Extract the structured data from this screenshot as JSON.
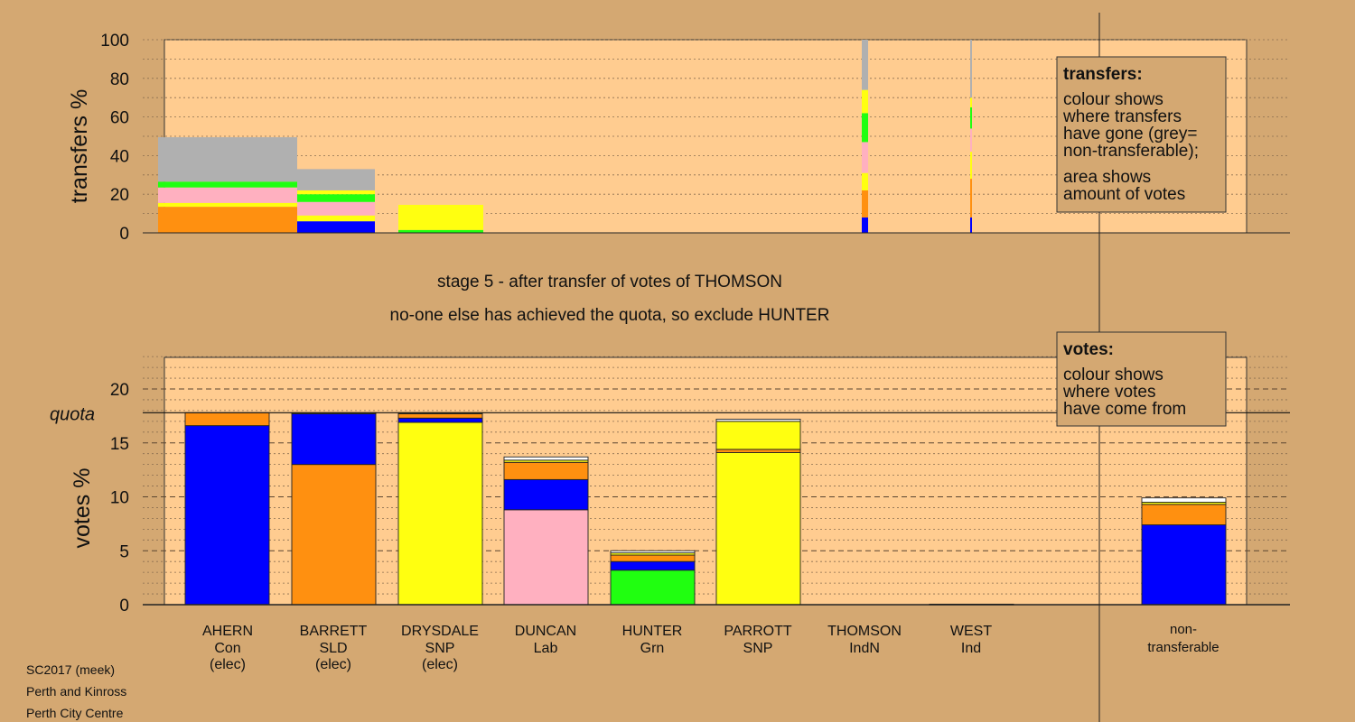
{
  "colors": {
    "page_bg": "#d4a872",
    "panel_bg": "#ffcc90",
    "blue": "#0000ff",
    "orange": "#ff9010",
    "yellow": "#ffff10",
    "pink": "#ffb0c0",
    "green": "#20ff10",
    "grey": "#b0b0b0",
    "white": "#ffffff"
  },
  "stage": {
    "line1": "stage 5 - after transfer of votes of THOMSON",
    "line2": "no-one else has achieved the quota, so exclude HUNTER"
  },
  "footer": {
    "line1": "SC2017 (meek)",
    "line2": "Perth and Kinross",
    "line3": "Perth City Centre"
  },
  "transfers_legend": {
    "title": "transfers:",
    "lines": [
      "colour shows",
      "where transfers",
      "have gone (grey=",
      "non-transferable);"
    ],
    "lines2": [
      "area shows",
      "amount of votes"
    ]
  },
  "votes_legend": {
    "title": "votes:",
    "lines": [
      "colour shows",
      "where votes",
      "have come from"
    ]
  },
  "candidates": [
    {
      "name": "AHERN",
      "party": "Con",
      "status": "(elec)"
    },
    {
      "name": "BARRETT",
      "party": "SLD",
      "status": "(elec)"
    },
    {
      "name": "DRYSDALE",
      "party": "SNP",
      "status": "(elec)"
    },
    {
      "name": "DUNCAN",
      "party": "Lab",
      "status": ""
    },
    {
      "name": "HUNTER",
      "party": "Grn",
      "status": ""
    },
    {
      "name": "PARROTT",
      "party": "SNP",
      "status": ""
    },
    {
      "name": "THOMSON",
      "party": "IndN",
      "status": ""
    },
    {
      "name": "WEST",
      "party": "Ind",
      "status": ""
    }
  ],
  "nontransferable": {
    "line1": "non-",
    "line2": "transferable"
  },
  "chart_data": [
    {
      "type": "bar",
      "id": "transfers",
      "ylabel": "transfers %",
      "ylim": [
        0,
        100
      ],
      "yticks": [
        0,
        20,
        40,
        60,
        80,
        100
      ],
      "grid": true,
      "legend": "top-right",
      "stacked": true,
      "bars": [
        {
          "category": "AHERN",
          "segments": [
            {
              "color": "orange",
              "value": 13.5
            },
            {
              "color": "yellow",
              "value": 2
            },
            {
              "color": "pink",
              "value": 8
            },
            {
              "color": "green",
              "value": 3
            },
            {
              "color": "grey",
              "value": 23
            }
          ]
        },
        {
          "category": "BARRETT",
          "segments": [
            {
              "color": "blue",
              "value": 6
            },
            {
              "color": "yellow",
              "value": 3
            },
            {
              "color": "pink",
              "value": 7
            },
            {
              "color": "green",
              "value": 4
            },
            {
              "color": "yellow",
              "value": 2
            },
            {
              "color": "grey",
              "value": 11
            }
          ]
        },
        {
          "category": "DRYSDALE",
          "segments": [
            {
              "color": "green",
              "value": 1.5
            },
            {
              "color": "yellow",
              "value": 13
            }
          ]
        },
        {
          "category": "THOMSON",
          "segments": [
            {
              "color": "blue",
              "value": 8
            },
            {
              "color": "orange",
              "value": 14
            },
            {
              "color": "yellow",
              "value": 9
            },
            {
              "color": "pink",
              "value": 16
            },
            {
              "color": "green",
              "value": 15
            },
            {
              "color": "yellow",
              "value": 12
            },
            {
              "color": "grey",
              "value": 26
            }
          ]
        },
        {
          "category": "WEST",
          "segments": [
            {
              "color": "blue",
              "value": 8
            },
            {
              "color": "orange",
              "value": 20
            },
            {
              "color": "yellow",
              "value": 14
            },
            {
              "color": "pink",
              "value": 12
            },
            {
              "color": "green",
              "value": 11
            },
            {
              "color": "yellow",
              "value": 5
            },
            {
              "color": "grey",
              "value": 30
            }
          ]
        }
      ]
    },
    {
      "type": "bar",
      "id": "votes",
      "ylabel": "votes %",
      "ylim": [
        0,
        23
      ],
      "yticks": [
        0,
        5,
        10,
        15,
        20
      ],
      "quota": 17.8,
      "quota_label": "quota",
      "grid": true,
      "legend": "top-right",
      "stacked": true,
      "bars": [
        {
          "category": "AHERN",
          "segments": [
            {
              "color": "blue",
              "value": 16.6
            },
            {
              "color": "orange",
              "value": 1.2
            }
          ]
        },
        {
          "category": "BARRETT",
          "segments": [
            {
              "color": "orange",
              "value": 13.0
            },
            {
              "color": "blue",
              "value": 4.7
            },
            {
              "color": "yellow",
              "value": 0.1
            }
          ]
        },
        {
          "category": "DRYSDALE",
          "segments": [
            {
              "color": "yellow",
              "value": 16.9
            },
            {
              "color": "blue",
              "value": 0.4
            },
            {
              "color": "orange",
              "value": 0.4
            },
            {
              "color": "yellow",
              "value": 0.1
            }
          ]
        },
        {
          "category": "DUNCAN",
          "segments": [
            {
              "color": "pink",
              "value": 8.8
            },
            {
              "color": "blue",
              "value": 2.8
            },
            {
              "color": "orange",
              "value": 1.6
            },
            {
              "color": "yellow",
              "value": 0.2
            },
            {
              "color": "white",
              "value": 0.3
            }
          ]
        },
        {
          "category": "HUNTER",
          "segments": [
            {
              "color": "green",
              "value": 3.2
            },
            {
              "color": "blue",
              "value": 0.8
            },
            {
              "color": "orange",
              "value": 0.6
            },
            {
              "color": "yellow",
              "value": 0.2
            },
            {
              "color": "white",
              "value": 0.2
            }
          ]
        },
        {
          "category": "PARROTT",
          "segments": [
            {
              "color": "yellow",
              "value": 14.1
            },
            {
              "color": "orange",
              "value": 0.3
            },
            {
              "color": "yellow",
              "value": 2.6
            },
            {
              "color": "white",
              "value": 0.2
            }
          ]
        },
        {
          "category": "THOMSON",
          "segments": []
        },
        {
          "category": "WEST",
          "segments": [
            {
              "color": "blue",
              "value": 0.05
            }
          ]
        },
        {
          "category": "non-transferable",
          "segments": [
            {
              "color": "blue",
              "value": 7.4
            },
            {
              "color": "orange",
              "value": 1.9
            },
            {
              "color": "yellow",
              "value": 0.2
            },
            {
              "color": "white",
              "value": 0.4
            }
          ]
        }
      ]
    }
  ]
}
